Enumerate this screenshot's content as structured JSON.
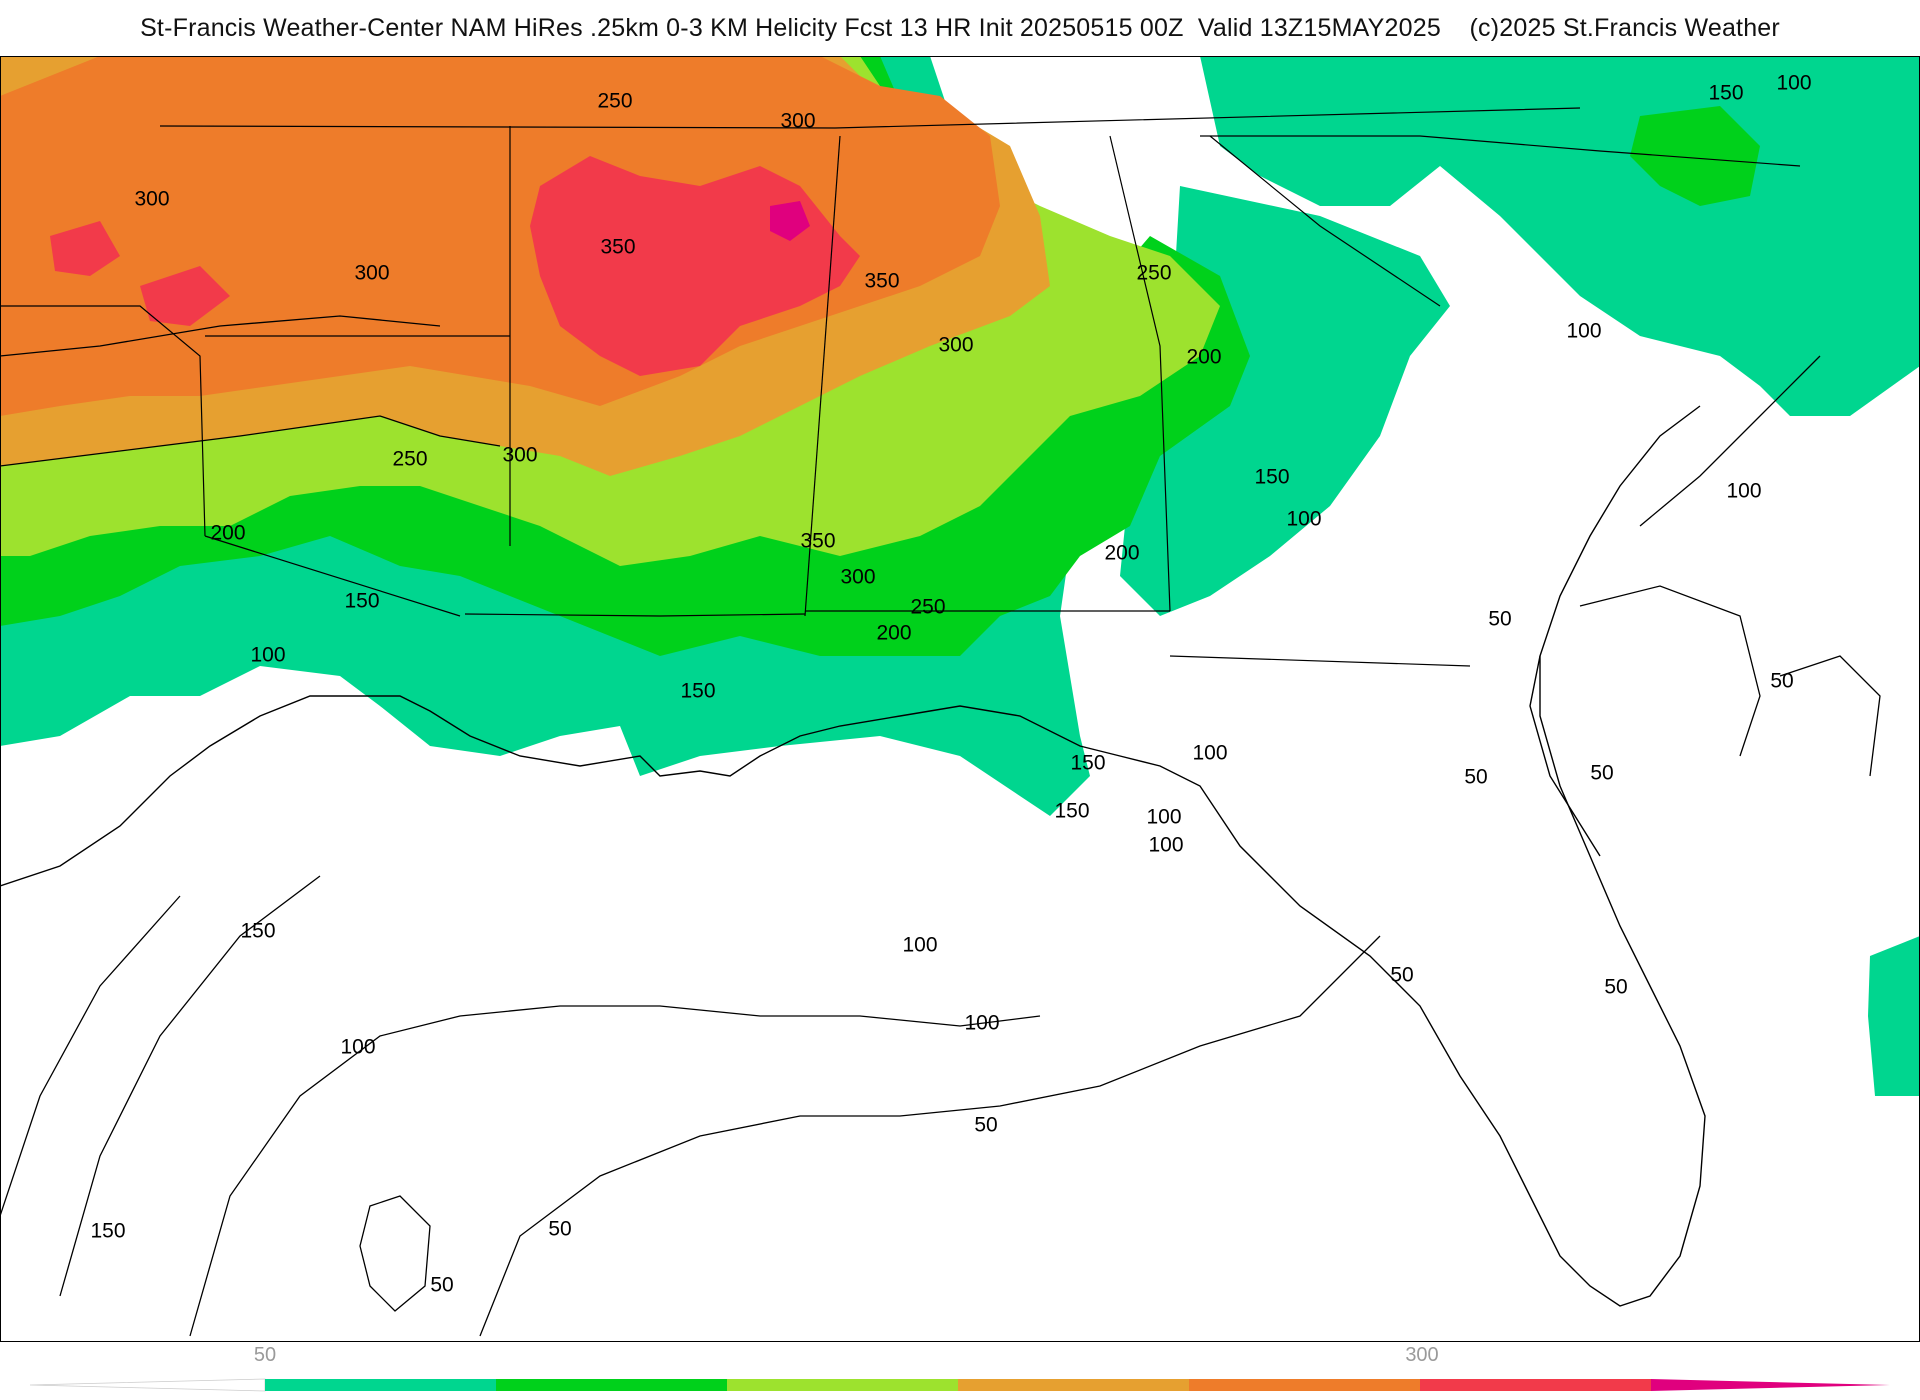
{
  "header": {
    "title": "St-Francis Weather-Center NAM HiRes .25km 0-3 KM Helicity Fcst 13 HR Init 20250515 00Z  Valid 13Z15MAY2025    (c)2025 St.Francis Weather"
  },
  "map": {
    "contour_labels": [
      "250",
      "300",
      "300",
      "300",
      "350",
      "350",
      "300",
      "250",
      "250",
      "300",
      "200",
      "200",
      "150",
      "100",
      "350",
      "300",
      "250",
      "200",
      "150",
      "200",
      "150",
      "100",
      "150",
      "100",
      "150",
      "100",
      "100",
      "50",
      "50",
      "50",
      "50",
      "50",
      "50",
      "100",
      "100",
      "150",
      "100",
      "150",
      "50",
      "50",
      "50",
      "100",
      "100",
      "100",
      "150"
    ]
  },
  "legend": {
    "tick_labels": [
      "50",
      "300"
    ],
    "bins": [
      {
        "color": "#ffffff"
      },
      {
        "color": "#00d68f"
      },
      {
        "color": "#00d11b"
      },
      {
        "color": "#9de22e"
      },
      {
        "color": "#e6a030"
      },
      {
        "color": "#ee7c2a"
      },
      {
        "color": "#f23a4a"
      },
      {
        "color": "#e0007e"
      }
    ]
  },
  "colors": {
    "shade_50_100": "#00d68f",
    "shade_100_150": "#00d11b",
    "shade_150_200": "#9de22e",
    "shade_200_250": "#e6a030",
    "shade_250_300": "#ee7c2a",
    "shade_300_350": "#f23a4a",
    "shade_350_plus": "#e0007e"
  }
}
